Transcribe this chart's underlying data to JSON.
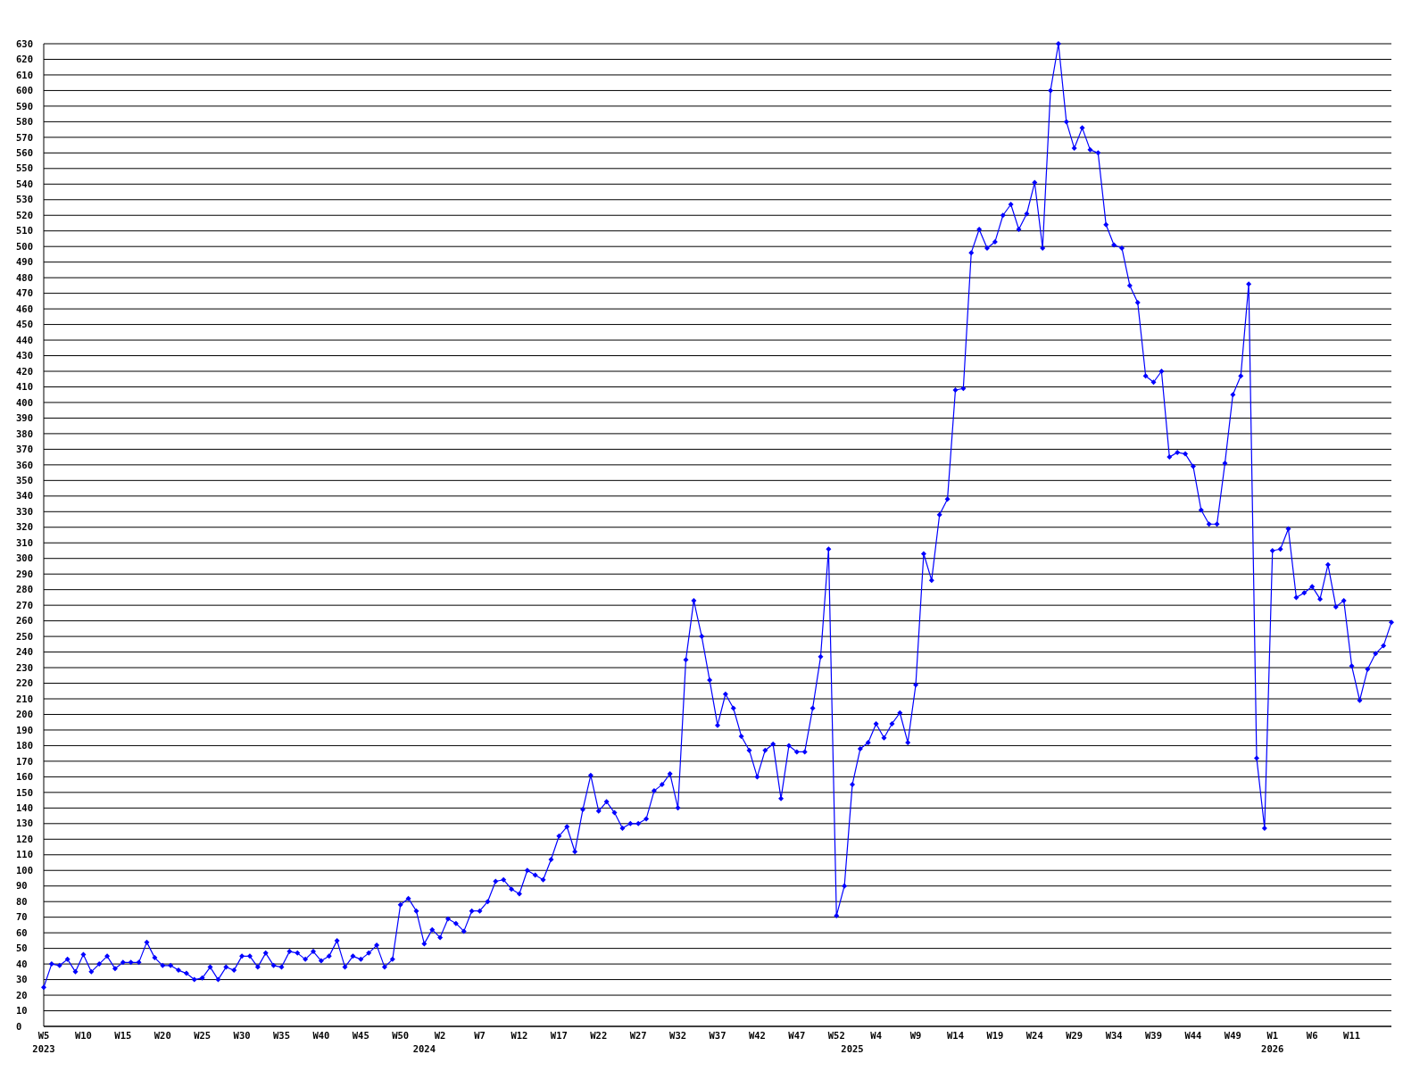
{
  "chart_data": {
    "type": "line",
    "categories": [
      "W5\n2023",
      null,
      null,
      null,
      null,
      "W10",
      null,
      null,
      null,
      null,
      "W15",
      null,
      null,
      null,
      null,
      "W20",
      null,
      null,
      null,
      null,
      "W25",
      null,
      null,
      null,
      null,
      "W30",
      null,
      null,
      null,
      null,
      "W35",
      null,
      null,
      null,
      null,
      "W40",
      null,
      null,
      null,
      null,
      "W45",
      null,
      null,
      null,
      null,
      "W50",
      null,
      null,
      "\n2024",
      null,
      "W2",
      null,
      null,
      null,
      null,
      "W7",
      null,
      null,
      null,
      null,
      "W12",
      null,
      null,
      null,
      null,
      "W17",
      null,
      null,
      null,
      null,
      "W22",
      null,
      null,
      null,
      null,
      "W27",
      null,
      null,
      null,
      null,
      "W32",
      null,
      null,
      null,
      null,
      "W37",
      null,
      null,
      null,
      null,
      "W42",
      null,
      null,
      null,
      null,
      "W47",
      null,
      null,
      null,
      null,
      "W52",
      null,
      "\n2025",
      null,
      null,
      "W4",
      null,
      null,
      null,
      null,
      "W9",
      null,
      null,
      null,
      null,
      "W14",
      null,
      null,
      null,
      null,
      "W19",
      null,
      null,
      null,
      null,
      "W24",
      null,
      null,
      null,
      null,
      "W29",
      null,
      null,
      null,
      null,
      "W34",
      null,
      null,
      null,
      null,
      "W39",
      null,
      null,
      null,
      null,
      "W44",
      null,
      null,
      null,
      null,
      "W49",
      null,
      null,
      null,
      null,
      "W1\n2026",
      null,
      null,
      null,
      null,
      "W6",
      null,
      null,
      null,
      null,
      "W11",
      null,
      null,
      null,
      null,
      null
    ],
    "series": [
      {
        "color": "#0000ff",
        "values": [
          25,
          40,
          39,
          43,
          35,
          46,
          35,
          40,
          45,
          37,
          41,
          41,
          41,
          54,
          44,
          39,
          39,
          36,
          34,
          30,
          31,
          38,
          30,
          38,
          36,
          45,
          45,
          38,
          47,
          39,
          38,
          48,
          47,
          43,
          48,
          42,
          45,
          55,
          38,
          45,
          43,
          47,
          52,
          38,
          43,
          78,
          82,
          74,
          53,
          62,
          57,
          69,
          66,
          61,
          74,
          74,
          80,
          93,
          94,
          88,
          85,
          100,
          97,
          94,
          107,
          122,
          128,
          112,
          139,
          161,
          138,
          144,
          137,
          127,
          130,
          130,
          133,
          151,
          155,
          162,
          140,
          235,
          273,
          250,
          222,
          193,
          213,
          204,
          186,
          177,
          160,
          177,
          181,
          146,
          180,
          176,
          176,
          204,
          237,
          306,
          71,
          90,
          155,
          178,
          182,
          194,
          185,
          194,
          201,
          182,
          219,
          303,
          286,
          328,
          338,
          408,
          409,
          496,
          511,
          499,
          503,
          520,
          527,
          511,
          521,
          541,
          499,
          600,
          630,
          580,
          563,
          576,
          562,
          560,
          514,
          501,
          499,
          475,
          464,
          417,
          413,
          420,
          365,
          368,
          367,
          359,
          331,
          322,
          322,
          361,
          405,
          417,
          476,
          172,
          127,
          305,
          306,
          319,
          275,
          278,
          282,
          274,
          296,
          269,
          273,
          231,
          209,
          229,
          239,
          244,
          259
        ]
      }
    ],
    "ylim": [
      0,
      630
    ],
    "yticks": [
      0,
      10,
      20,
      30,
      40,
      50,
      60,
      70,
      80,
      90,
      100,
      110,
      120,
      130,
      140,
      150,
      160,
      170,
      180,
      190,
      200,
      210,
      220,
      230,
      240,
      250,
      260,
      270,
      280,
      290,
      300,
      310,
      320,
      330,
      340,
      350,
      360,
      370,
      380,
      390,
      400,
      410,
      420,
      430,
      440,
      450,
      460,
      470,
      480,
      490,
      500,
      510,
      520,
      530,
      540,
      550,
      560,
      570,
      580,
      590,
      600,
      610,
      620,
      630
    ],
    "grid": "y",
    "marker": "diamond",
    "line_style": "solid"
  }
}
